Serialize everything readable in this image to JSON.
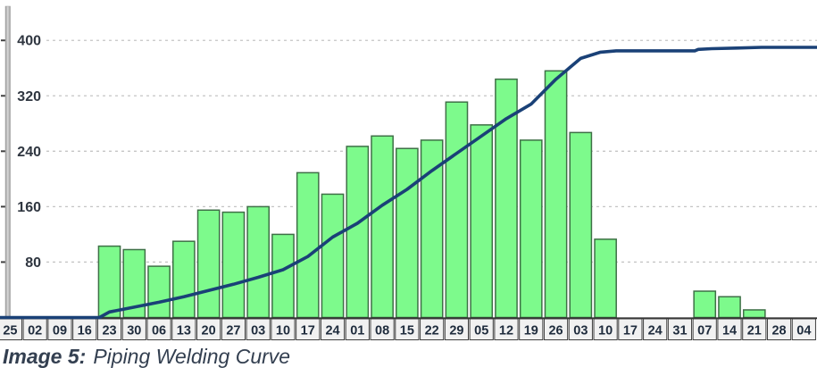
{
  "figure": {
    "caption": {
      "label": "Image 5:",
      "title": "Piping Welding Curve"
    }
  },
  "chart_data": {
    "type": "bar",
    "title": "",
    "legend": "none",
    "grid": "dashed horizontal gridlines",
    "categories": [
      "25",
      "02",
      "09",
      "16",
      "23",
      "30",
      "06",
      "13",
      "20",
      "27",
      "03",
      "10",
      "17",
      "24",
      "01",
      "08",
      "15",
      "22",
      "29",
      "05",
      "12",
      "19",
      "26",
      "03",
      "10",
      "17",
      "24",
      "31",
      "07",
      "14",
      "21",
      "28",
      "04"
    ],
    "series": [
      {
        "name": "weekly-welds-bars",
        "type": "bar",
        "values": [
          0,
          0,
          0,
          0,
          103,
          98,
          74,
          110,
          155,
          152,
          160,
          120,
          209,
          178,
          247,
          262,
          244,
          256,
          311,
          278,
          344,
          256,
          356,
          267,
          113,
          0,
          0,
          0,
          38,
          30,
          11,
          0,
          0
        ]
      },
      {
        "name": "cumulative-welds-line",
        "type": "line",
        "points_pos_value": [
          [
            0,
            0
          ],
          [
            4.1,
            0
          ],
          [
            4.5,
            8
          ],
          [
            5.5,
            15
          ],
          [
            6.5,
            22
          ],
          [
            7.5,
            30
          ],
          [
            8.5,
            39
          ],
          [
            9.5,
            48
          ],
          [
            10.5,
            58
          ],
          [
            11.5,
            69
          ],
          [
            12.5,
            88
          ],
          [
            13.5,
            116
          ],
          [
            14.5,
            136
          ],
          [
            15.5,
            162
          ],
          [
            16.5,
            185
          ],
          [
            17.5,
            212
          ],
          [
            18.5,
            237
          ],
          [
            19.5,
            262
          ],
          [
            20.5,
            287
          ],
          [
            21.5,
            308
          ],
          [
            22.5,
            344
          ],
          [
            23.5,
            374
          ],
          [
            24.3,
            383
          ],
          [
            24.93,
            385
          ],
          [
            28.1,
            385
          ],
          [
            28.24,
            387
          ],
          [
            28.78,
            388
          ],
          [
            29.79,
            389
          ],
          [
            30.8,
            390
          ],
          [
            33.03,
            390
          ]
        ]
      }
    ],
    "y_axis": {
      "ticks": [
        400,
        320,
        240,
        160,
        80
      ],
      "range": [
        0,
        455
      ]
    },
    "colors": {
      "bar_fill": "#7dfa8c",
      "bar_border": "#3e7046",
      "line": "#1a4177",
      "gridline": "#c5c5c5",
      "axis_baseline": "#2e2e2e",
      "tick_mark": "#3f3f3f",
      "wall_gray": "#9a9a9a",
      "wall_gray_light": "#d9d9d9",
      "label_box_fill": "#f1f1f1",
      "label_box_border": "#3f3f3f",
      "y_tick_text": "#2f3640",
      "x_tick_text": "#1f2c3d",
      "caption_text": "#333f50"
    }
  }
}
